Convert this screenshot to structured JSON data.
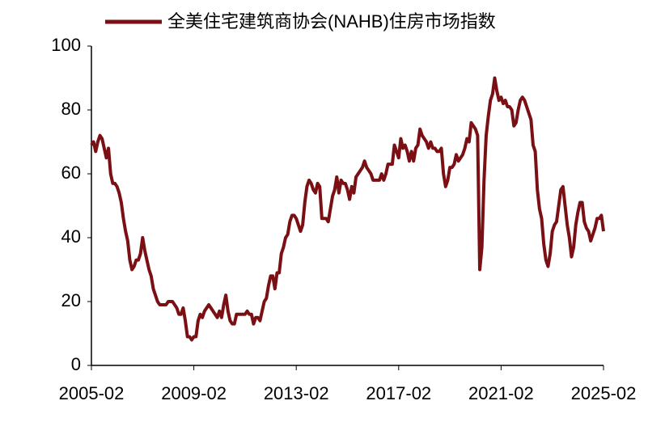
{
  "chart_data": {
    "type": "line",
    "series": [
      {
        "name": "全美住宅建筑商协会(NAHB)住房市场指数",
        "color": "#7b1014",
        "values": [
          69,
          70,
          67,
          70,
          72,
          71,
          68,
          65,
          68,
          60,
          57,
          57,
          56,
          54,
          51,
          46,
          42,
          39,
          33,
          30,
          31,
          33,
          33,
          35,
          40,
          36,
          33,
          30,
          28,
          24,
          22,
          20,
          19,
          19,
          19,
          19,
          20,
          20,
          20,
          19,
          18,
          16,
          16,
          18,
          14,
          9,
          9,
          8,
          9,
          9,
          14,
          16,
          15,
          17,
          18,
          19,
          18,
          17,
          16,
          15,
          17,
          15,
          19,
          22,
          17,
          14,
          13,
          13,
          16,
          16,
          16,
          16,
          16,
          17,
          16,
          16,
          13,
          15,
          15,
          14,
          17,
          20,
          21,
          25,
          28,
          28,
          24,
          29,
          29,
          35,
          37,
          40,
          41,
          45,
          47,
          47,
          46,
          44,
          42,
          44,
          51,
          56,
          58,
          57,
          55,
          54,
          57,
          56,
          46,
          46,
          46,
          45,
          49,
          53,
          55,
          59,
          54,
          58,
          57,
          57,
          55,
          52,
          56,
          54,
          59,
          60,
          61,
          62,
          64,
          62,
          61,
          60,
          58,
          58,
          58,
          58,
          60,
          58,
          60,
          63,
          63,
          63,
          69,
          67,
          65,
          71,
          68,
          69,
          67,
          64,
          67,
          64,
          68,
          69,
          74,
          72,
          71,
          70,
          68,
          70,
          68,
          68,
          67,
          67,
          68,
          60,
          56,
          58,
          62,
          62,
          63,
          66,
          64,
          65,
          66,
          68,
          71,
          70,
          76,
          75,
          74,
          72,
          30,
          37,
          58,
          72,
          78,
          83,
          85,
          90,
          86,
          83,
          84,
          82,
          83,
          81,
          81,
          80,
          75,
          76,
          80,
          83,
          84,
          83,
          81,
          79,
          77,
          69,
          67,
          55,
          49,
          46,
          38,
          33,
          31,
          35,
          42,
          44,
          45,
          50,
          55,
          56,
          50,
          44,
          40,
          34,
          37,
          44,
          48,
          51,
          51,
          45,
          43,
          42,
          39,
          41,
          43,
          46,
          46,
          47,
          42
        ]
      }
    ],
    "categories": [
      "2005-02",
      null,
      null,
      null,
      null,
      null,
      null,
      null,
      null,
      null,
      null,
      null,
      null,
      null,
      null,
      null,
      null,
      null,
      null,
      null,
      null,
      null,
      null,
      null,
      null,
      null,
      null,
      null,
      null,
      null,
      null,
      null,
      null,
      null,
      null,
      null,
      null,
      null,
      null,
      null,
      null,
      null,
      null,
      null,
      null,
      null,
      null,
      null,
      "2009-02",
      null,
      null,
      null,
      null,
      null,
      null,
      null,
      null,
      null,
      null,
      null,
      null,
      null,
      null,
      null,
      null,
      null,
      null,
      null,
      null,
      null,
      null,
      null,
      null,
      null,
      null,
      null,
      null,
      null,
      null,
      null,
      null,
      null,
      null,
      null,
      null,
      null,
      null,
      null,
      null,
      null,
      null,
      null,
      null,
      null,
      null,
      null,
      "2013-02",
      null,
      null,
      null,
      null,
      null,
      null,
      null,
      null,
      null,
      null,
      null,
      null,
      null,
      null,
      null,
      null,
      null,
      null,
      null,
      null,
      null,
      null,
      null,
      null,
      null,
      null,
      null,
      null,
      null,
      null,
      null,
      null,
      null,
      null,
      null,
      null,
      null,
      null,
      null,
      null,
      null,
      null,
      null,
      null,
      null,
      null,
      null,
      "2017-02",
      null,
      null,
      null,
      null,
      null,
      null,
      null,
      null,
      null,
      null,
      null,
      null,
      null,
      null,
      null,
      null,
      null,
      null,
      null,
      null,
      null,
      null,
      null,
      null,
      null,
      null,
      null,
      null,
      null,
      null,
      null,
      null,
      null,
      null,
      null,
      null,
      null,
      null,
      null,
      null,
      null,
      null,
      null,
      null,
      null,
      null,
      null,
      "2021-02",
      null,
      null,
      null,
      null,
      null,
      null,
      null,
      null,
      null,
      null,
      null,
      null,
      null,
      null,
      null,
      null,
      null,
      null,
      null,
      null,
      null,
      null,
      null,
      null,
      null,
      null,
      null,
      null,
      null,
      null,
      null,
      null,
      null,
      null,
      null,
      null,
      null,
      null,
      null,
      null,
      null,
      null,
      null,
      null,
      null,
      null,
      null,
      "2025-02"
    ],
    "ylim": [
      0,
      100
    ],
    "yticks": [
      0,
      20,
      40,
      60,
      80,
      100
    ],
    "grid": false,
    "legend": "top"
  }
}
